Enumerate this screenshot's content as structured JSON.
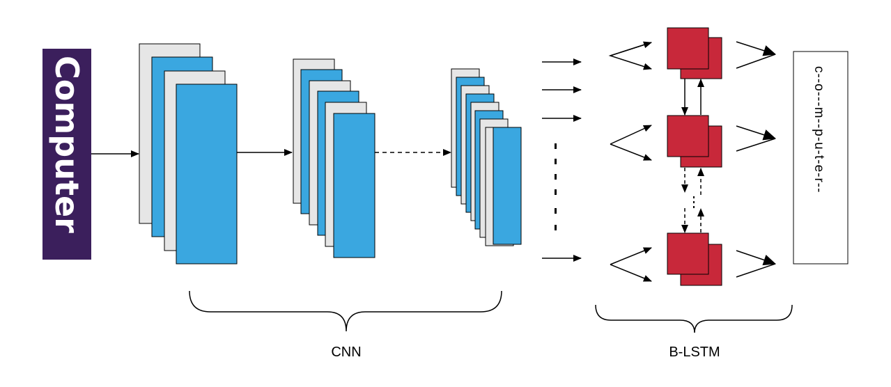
{
  "input_word": "Computer",
  "output_sequence": "c--o---m--p-u-t-e-r--",
  "labels": {
    "cnn": "CNN",
    "blstm": "B-LSTM"
  },
  "colors": {
    "input_bg": "#3b1f5c",
    "feature_gray": "#e6e6e6",
    "feature_blue": "#3aa7e0",
    "lstm_red": "#c8283a"
  }
}
